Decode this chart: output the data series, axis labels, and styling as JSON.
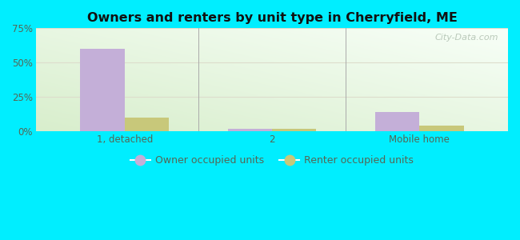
{
  "title": "Owners and renters by unit type in Cherryfield, ME",
  "categories": [
    "1, detached",
    "2",
    "Mobile home"
  ],
  "owner_values": [
    60.0,
    2.0,
    14.0
  ],
  "renter_values": [
    10.0,
    2.0,
    4.0
  ],
  "owner_color": "#c4afd8",
  "renter_color": "#c8c87a",
  "ylim": [
    0,
    75
  ],
  "yticks": [
    0,
    25,
    50,
    75
  ],
  "ytick_labels": [
    "0%",
    "25%",
    "50%",
    "75%"
  ],
  "bar_width": 0.3,
  "outer_bg": "#00eeff",
  "watermark": "City-Data.com",
  "legend_owner": "Owner occupied units",
  "legend_renter": "Renter occupied units",
  "tick_color": "#556655",
  "grid_color": "#ddddcc",
  "separator_color": "#aaaaaa"
}
